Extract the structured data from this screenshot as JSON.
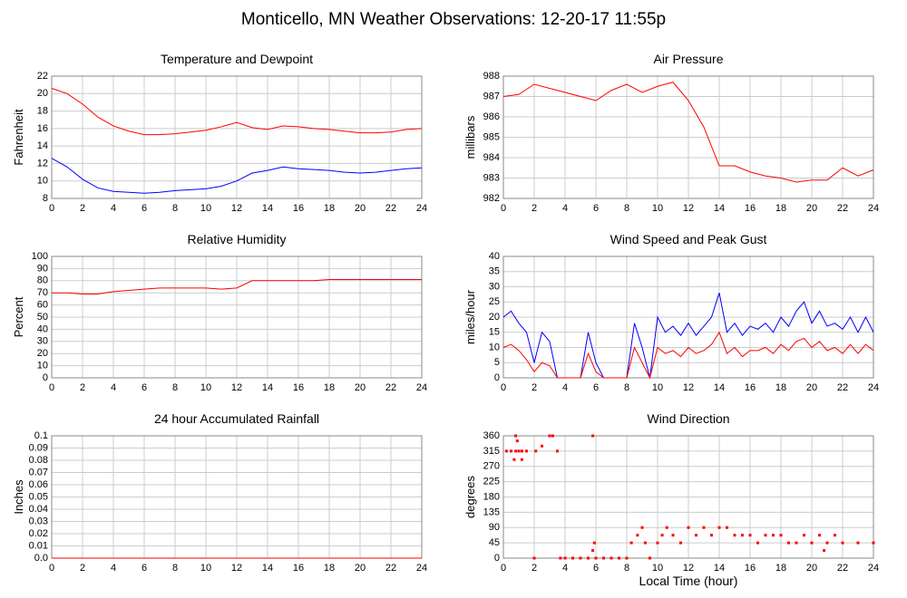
{
  "title": "Monticello, MN Weather Observations: 12-20-17 11:55p",
  "chart_data": [
    {
      "type": "line",
      "title": "Temperature and Dewpoint",
      "y_label": "Fahrenheit",
      "x": [
        0,
        1,
        2,
        3,
        4,
        5,
        6,
        7,
        8,
        9,
        10,
        11,
        12,
        13,
        14,
        15,
        16,
        17,
        18,
        19,
        20,
        21,
        22,
        23,
        24
      ],
      "series": [
        {
          "name": "Temperature",
          "color": "#ff0000",
          "values": [
            20.6,
            20,
            18.8,
            17.3,
            16.3,
            15.7,
            15.3,
            15.3,
            15.4,
            15.6,
            15.8,
            16.2,
            16.7,
            16.1,
            15.9,
            16.3,
            16.2,
            16.0,
            15.9,
            15.7,
            15.5,
            15.5,
            15.6,
            15.9,
            16.0
          ]
        },
        {
          "name": "Dewpoint",
          "color": "#0000ff",
          "values": [
            12.6,
            11.6,
            10.2,
            9.2,
            8.8,
            8.7,
            8.6,
            8.7,
            8.9,
            9.0,
            9.1,
            9.4,
            10.0,
            10.9,
            11.2,
            11.6,
            11.4,
            11.3,
            11.2,
            11.0,
            10.9,
            11.0,
            11.2,
            11.4,
            11.5
          ]
        }
      ],
      "xlim": [
        0,
        24
      ],
      "xticks": [
        0,
        2,
        4,
        6,
        8,
        10,
        12,
        14,
        16,
        18,
        20,
        22,
        24
      ],
      "ylim": [
        8,
        22
      ],
      "yticks": [
        8,
        10,
        12,
        14,
        16,
        18,
        20,
        22
      ],
      "grid": true
    },
    {
      "type": "line",
      "title": "Air Pressure",
      "y_label": "millibars",
      "x": [
        0,
        1,
        2,
        3,
        4,
        5,
        6,
        7,
        8,
        9,
        10,
        11,
        12,
        13,
        14,
        15,
        16,
        17,
        18,
        19,
        20,
        21,
        22,
        23,
        24
      ],
      "series": [
        {
          "name": "Pressure",
          "color": "#ff0000",
          "values": [
            987.0,
            987.1,
            987.6,
            987.4,
            987.2,
            987.0,
            986.8,
            987.3,
            987.6,
            987.2,
            987.5,
            987.7,
            986.8,
            985.5,
            983.6,
            983.6,
            983.3,
            983.1,
            983.0,
            982.8,
            982.9,
            982.9,
            983.5,
            983.1,
            983.4
          ]
        }
      ],
      "xlim": [
        0,
        24
      ],
      "xticks": [
        0,
        2,
        4,
        6,
        8,
        10,
        12,
        14,
        16,
        18,
        20,
        22,
        24
      ],
      "ylim": [
        982,
        988
      ],
      "yticks": [
        982,
        983,
        984,
        985,
        986,
        987,
        988
      ],
      "grid": true
    },
    {
      "type": "line",
      "title": "Relative Humidity",
      "y_label": "Percent",
      "x": [
        0,
        1,
        2,
        3,
        4,
        5,
        6,
        7,
        8,
        9,
        10,
        11,
        12,
        13,
        14,
        15,
        16,
        17,
        18,
        19,
        20,
        21,
        22,
        23,
        24
      ],
      "series": [
        {
          "name": "Humidity",
          "color": "#ff0000",
          "values": [
            70,
            70,
            69,
            69,
            71,
            72,
            73,
            74,
            74,
            74,
            74,
            73,
            74,
            80,
            80,
            80,
            80,
            80,
            81,
            81,
            81,
            81,
            81,
            81,
            81
          ]
        }
      ],
      "xlim": [
        0,
        24
      ],
      "xticks": [
        0,
        2,
        4,
        6,
        8,
        10,
        12,
        14,
        16,
        18,
        20,
        22,
        24
      ],
      "ylim": [
        0,
        100
      ],
      "yticks": [
        0,
        10,
        20,
        30,
        40,
        50,
        60,
        70,
        80,
        90,
        100
      ],
      "grid": true
    },
    {
      "type": "line",
      "title": "Wind Speed and Peak Gust",
      "y_label": "miles/hour",
      "x": [
        0,
        0.5,
        1,
        1.5,
        2,
        2.5,
        3,
        3.5,
        4,
        4.5,
        5,
        5.5,
        6,
        6.5,
        7,
        7.5,
        8,
        8.5,
        9,
        9.5,
        10,
        10.5,
        11,
        11.5,
        12,
        12.5,
        13,
        13.5,
        14,
        14.5,
        15,
        15.5,
        16,
        16.5,
        17,
        17.5,
        18,
        18.5,
        19,
        19.5,
        20,
        20.5,
        21,
        21.5,
        22,
        22.5,
        23,
        23.5,
        24
      ],
      "series": [
        {
          "name": "Peak Gust",
          "color": "#0000ff",
          "values": [
            20,
            22,
            18,
            15,
            5,
            15,
            12,
            0,
            0,
            0,
            0,
            15,
            5,
            0,
            0,
            0,
            0,
            18,
            10,
            0,
            20,
            15,
            17,
            14,
            18,
            14,
            17,
            20,
            28,
            15,
            18,
            14,
            17,
            16,
            18,
            15,
            20,
            17,
            22,
            25,
            18,
            22,
            17,
            18,
            16,
            20,
            15,
            20,
            15
          ]
        },
        {
          "name": "Wind Speed",
          "color": "#ff0000",
          "values": [
            10,
            11,
            9,
            6,
            2,
            5,
            4,
            0,
            0,
            0,
            0,
            8,
            2,
            0,
            0,
            0,
            0,
            10,
            5,
            0,
            10,
            8,
            9,
            7,
            10,
            8,
            9,
            11,
            15,
            8,
            10,
            7,
            9,
            9,
            10,
            8,
            11,
            9,
            12,
            13,
            10,
            12,
            9,
            10,
            8,
            11,
            8,
            11,
            9
          ]
        }
      ],
      "xlim": [
        0,
        24
      ],
      "xticks": [
        0,
        2,
        4,
        6,
        8,
        10,
        12,
        14,
        16,
        18,
        20,
        22,
        24
      ],
      "ylim": [
        0,
        40
      ],
      "yticks": [
        0,
        5,
        10,
        15,
        20,
        25,
        30,
        35,
        40
      ],
      "grid": true
    },
    {
      "type": "line",
      "title": "24 hour Accumulated Rainfall",
      "y_label": "Inches",
      "x": [
        0,
        24
      ],
      "series": [
        {
          "name": "Rainfall",
          "color": "#ff0000",
          "values": [
            0,
            0
          ]
        }
      ],
      "xlim": [
        0,
        24
      ],
      "xticks": [
        0,
        2,
        4,
        6,
        8,
        10,
        12,
        14,
        16,
        18,
        20,
        22,
        24
      ],
      "ylim": [
        0,
        0.1
      ],
      "yticks": [
        {
          "value": 0,
          "label": "0.0"
        },
        0.01,
        0.02,
        0.03,
        0.04,
        0.05,
        0.06,
        0.07,
        0.08,
        0.09,
        0.1
      ],
      "grid": true
    },
    {
      "type": "scatter",
      "title": "Wind Direction",
      "y_label": "degrees",
      "x_label": "Local Time (hour)",
      "series": [
        {
          "name": "Direction",
          "color": "#ff0000",
          "x": [
            0.2,
            0.5,
            0.8,
            1,
            1.2,
            1.5,
            0.7,
            1.2,
            0.9,
            0.8,
            2,
            2.1,
            2.5,
            3,
            3.2,
            3.5,
            3.7,
            4,
            4.5,
            5,
            5.5,
            5.8,
            5.8,
            5.9,
            6,
            6.5,
            7,
            7.5,
            8,
            8.3,
            8.7,
            9,
            9.2,
            9.5,
            10,
            10.3,
            10.6,
            11,
            11.5,
            12,
            12.5,
            13,
            13.5,
            14,
            14.5,
            15,
            15.5,
            16,
            16.5,
            17,
            17.5,
            18,
            18.5,
            19,
            19.5,
            20,
            20.5,
            20.8,
            21,
            21.5,
            22,
            23,
            24
          ],
          "values": [
            315,
            315,
            315,
            315,
            315,
            315,
            290,
            290,
            345,
            360,
            0,
            315,
            330,
            360,
            360,
            315,
            0,
            0,
            0,
            0,
            0,
            360,
            22.5,
            45,
            0,
            0,
            0,
            0,
            0,
            45,
            67.5,
            90,
            45,
            0,
            45,
            67.5,
            90,
            67.5,
            45,
            90,
            67.5,
            90,
            67.5,
            90,
            90,
            67.5,
            67.5,
            67.5,
            45,
            67.5,
            67.5,
            67.5,
            45,
            45,
            67.5,
            45,
            67.5,
            22.5,
            45,
            67.5,
            45,
            45,
            45
          ]
        }
      ],
      "xlim": [
        0,
        24
      ],
      "xticks": [
        0,
        2,
        4,
        6,
        8,
        10,
        12,
        14,
        16,
        18,
        20,
        22,
        24
      ],
      "ylim": [
        0,
        360
      ],
      "yticks": [
        0,
        45,
        90,
        135,
        180,
        225,
        270,
        315,
        360
      ],
      "grid": true
    }
  ]
}
